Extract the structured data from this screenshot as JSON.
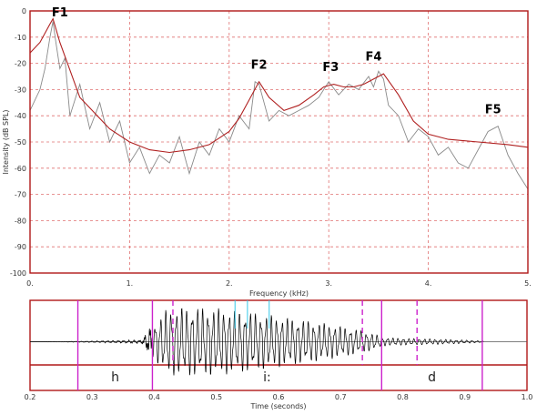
{
  "chart_data": [
    {
      "type": "line",
      "title": "",
      "xlabel": "Frequency (kHz)",
      "ylabel": "Intensity (dB SPL)",
      "xlim": [
        0,
        5
      ],
      "ylim": [
        -100,
        0
      ],
      "x_ticks": [
        "0.",
        "1.",
        "2.",
        "3.",
        "4.",
        "5."
      ],
      "y_ticks": [
        "0",
        "-10",
        "-20",
        "-30",
        "-40",
        "-50",
        "-60",
        "-70",
        "-80",
        "-90",
        "-100"
      ],
      "grid": true,
      "grid_style": "dashed",
      "colors": {
        "frame": "#b01818",
        "grid": "#e07070",
        "envelope": "#b02020",
        "spectrum": "#8a8a8a",
        "labels": "#000000"
      },
      "series": [
        {
          "x": [
            0,
            0.1,
            0.2,
            0.23,
            0.3,
            0.5,
            0.8,
            1.0,
            1.2,
            1.4,
            1.6,
            1.8,
            2.0,
            2.1,
            2.2,
            2.3,
            2.4,
            2.55,
            2.7,
            2.85,
            2.95,
            3.05,
            3.15,
            3.25,
            3.35,
            3.45,
            3.55,
            3.7,
            3.85,
            4.0,
            4.2,
            4.5,
            4.8,
            5.0
          ],
          "y": [
            -16,
            -12,
            -5,
            -3,
            -12,
            -33,
            -45,
            -50,
            -53,
            -54,
            -53,
            -51,
            -46,
            -41,
            -34,
            -27,
            -33,
            -38,
            -36,
            -32,
            -29,
            -28,
            -29,
            -29,
            -28,
            -26,
            -24,
            -32,
            -42,
            -47,
            -49,
            -50,
            -51,
            -52
          ]
        },
        {
          "x": [
            0,
            0.1,
            0.15,
            0.2,
            0.23,
            0.26,
            0.3,
            0.35,
            0.4,
            0.5,
            0.6,
            0.7,
            0.8,
            0.9,
            1.0,
            1.1,
            1.2,
            1.3,
            1.4,
            1.5,
            1.6,
            1.7,
            1.8,
            1.9,
            2.0,
            2.1,
            2.2,
            2.26,
            2.3,
            2.35,
            2.4,
            2.5,
            2.6,
            2.7,
            2.8,
            2.9,
            2.95,
            3.0,
            3.1,
            3.2,
            3.3,
            3.4,
            3.45,
            3.5,
            3.55,
            3.6,
            3.7,
            3.8,
            3.9,
            4.0,
            4.1,
            4.2,
            4.3,
            4.4,
            4.5,
            4.6,
            4.7,
            4.8,
            4.9,
            5.0
          ],
          "y": [
            -38,
            -30,
            -22,
            -10,
            -4,
            -12,
            -22,
            -18,
            -40,
            -28,
            -45,
            -35,
            -50,
            -42,
            -58,
            -52,
            -62,
            -55,
            -58,
            -48,
            -62,
            -50,
            -55,
            -45,
            -50,
            -40,
            -45,
            -27,
            -28,
            -35,
            -42,
            -38,
            -40,
            -38,
            -36,
            -33,
            -30,
            -27,
            -32,
            -28,
            -30,
            -25,
            -29,
            -23,
            -26,
            -36,
            -40,
            -50,
            -45,
            -48,
            -55,
            -52,
            -58,
            -60,
            -53,
            -46,
            -44,
            -55,
            -62,
            -68
          ]
        }
      ],
      "annotations": [
        {
          "text": "F1",
          "x": 0.3,
          "y": -2
        },
        {
          "text": "F2",
          "x": 2.3,
          "y": -22
        },
        {
          "text": "F3",
          "x": 3.02,
          "y": -23
        },
        {
          "text": "F4",
          "x": 3.45,
          "y": -19
        },
        {
          "text": "F5",
          "x": 4.65,
          "y": -39
        }
      ]
    },
    {
      "type": "line",
      "title": "",
      "xlabel": "Time (seconds)",
      "ylabel": "",
      "xlim": [
        0.2,
        1.0
      ],
      "x_ticks": [
        "0.2",
        "0.3",
        "0.4",
        "0.5",
        "0.6",
        "0.7",
        "0.8",
        "0.9",
        "1.0"
      ],
      "segments": [
        {
          "label": "h",
          "start": 0.277,
          "end": 0.397
        },
        {
          "label": "i:",
          "start": 0.397,
          "end": 0.766
        },
        {
          "label": "d",
          "start": 0.766,
          "end": 0.928
        }
      ],
      "boundaries_solid": [
        0.277,
        0.397,
        0.766,
        0.928
      ],
      "boundaries_dashed": [
        0.43,
        0.735,
        0.823
      ],
      "markers_cyan": [
        0.53,
        0.55,
        0.585
      ],
      "waveform": {
        "x": [
          0.2,
          0.277,
          0.38,
          0.397,
          0.42,
          0.44,
          0.47,
          0.5,
          0.53,
          0.56,
          0.6,
          0.64,
          0.68,
          0.72,
          0.75,
          0.77,
          0.8,
          0.85,
          0.9,
          0.93
        ],
        "amplitude": [
          0,
          0.01,
          0.04,
          0.45,
          0.95,
          1.0,
          1.0,
          0.98,
          0.92,
          0.85,
          0.74,
          0.63,
          0.52,
          0.38,
          0.25,
          0.12,
          0.1,
          0.08,
          0.05,
          0.02
        ]
      },
      "colors": {
        "frame": "#b01818",
        "segment_boundary": "#cc22cc",
        "cyan_marker": "#33c8e8",
        "waveform": "#000000",
        "centerline": "#555555"
      }
    }
  ]
}
